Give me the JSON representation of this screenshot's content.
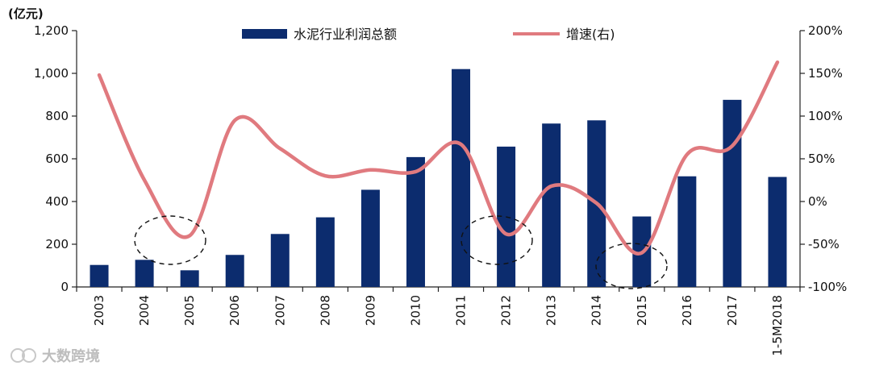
{
  "chart_data": {
    "type": "bar+line",
    "unit_left": "(亿元)",
    "categories": [
      "2003",
      "2004",
      "2005",
      "2006",
      "2007",
      "2008",
      "2009",
      "2010",
      "2011",
      "2012",
      "2013",
      "2014",
      "2015",
      "2016",
      "2017",
      "1-5M2018"
    ],
    "series": [
      {
        "name": "水泥行业利润总额",
        "type": "bar",
        "axis": "left",
        "color": "#0c2c6e",
        "values": [
          103,
          127,
          78,
          150,
          248,
          326,
          455,
          608,
          1020,
          657,
          765,
          780,
          330,
          518,
          876,
          515
        ]
      },
      {
        "name": "增速(右)",
        "type": "line",
        "axis": "right",
        "color": "#e07a7f",
        "values": [
          148,
          25,
          -40,
          95,
          62,
          30,
          37,
          35,
          67,
          -38,
          18,
          -2,
          -60,
          55,
          65,
          163
        ]
      }
    ],
    "left_axis": {
      "min": 0,
      "max": 1200,
      "ticks": [
        "0",
        "200",
        "400",
        "600",
        "800",
        "1,000",
        "1,200"
      ]
    },
    "right_axis": {
      "min": -100,
      "max": 200,
      "ticks": [
        "-100%",
        "-50%",
        "0%",
        "50%",
        "100%",
        "150%",
        "200%"
      ]
    },
    "legend": {
      "placement": "top"
    },
    "grid": false,
    "annotations": [
      "dashed ellipse around 2005 trough",
      "dashed ellipse around 2012 trough",
      "dashed ellipse around 2015 trough"
    ]
  },
  "watermark": {
    "text": "大数跨境"
  }
}
